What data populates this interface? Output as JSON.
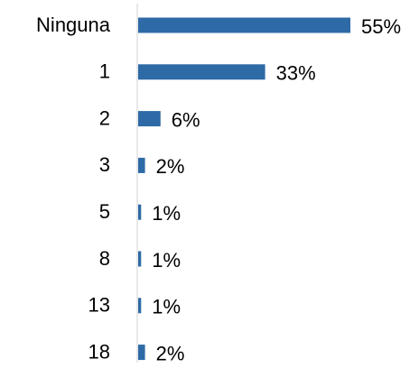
{
  "chart_data": {
    "type": "bar",
    "orientation": "horizontal",
    "categories": [
      "Ninguna",
      "1",
      "2",
      "3",
      "5",
      "8",
      "13",
      "18"
    ],
    "values": [
      55,
      33,
      6,
      2,
      1,
      1,
      1,
      2
    ],
    "value_labels": [
      "55%",
      "33%",
      "6%",
      "2%",
      "1%",
      "1%",
      "1%",
      "2%"
    ],
    "color": "#2e6aa6"
  }
}
